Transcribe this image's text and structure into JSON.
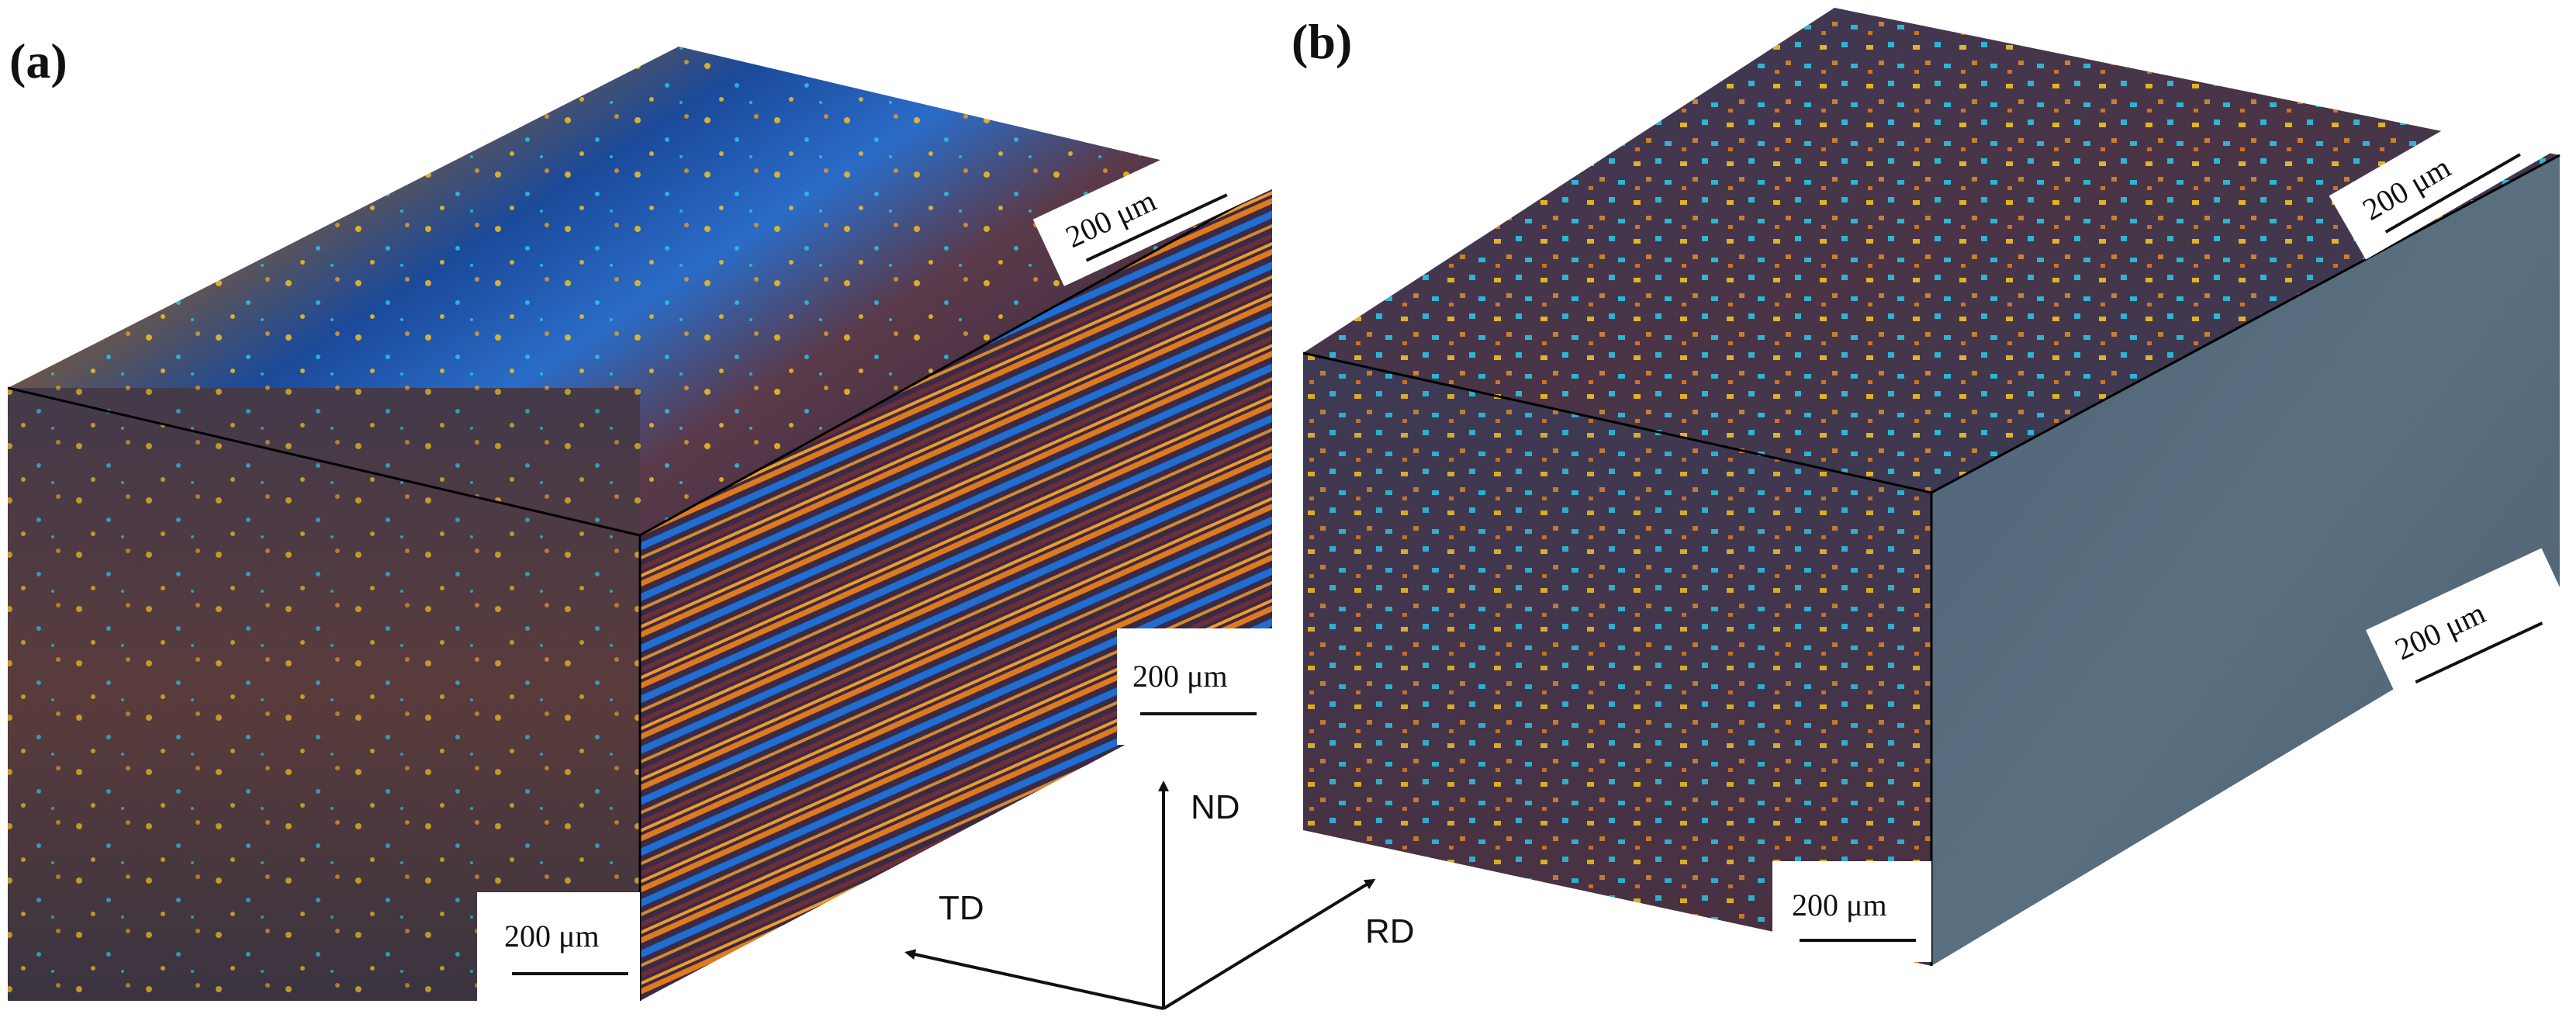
{
  "panels": {
    "a": {
      "label": "(a)"
    },
    "b": {
      "label": "(b)"
    }
  },
  "scale_bar": {
    "text": "200 μm"
  },
  "axes": {
    "nd": "ND",
    "td": "TD",
    "rd": "RD"
  },
  "colors": {
    "matrix_dark": "#3e2b3f",
    "grain_yellow": "#f2c21e",
    "grain_cyan": "#29c4e4",
    "band_blue": "#1f6ed4",
    "band_orange": "#e07a1c",
    "edge_black": "#000000"
  }
}
